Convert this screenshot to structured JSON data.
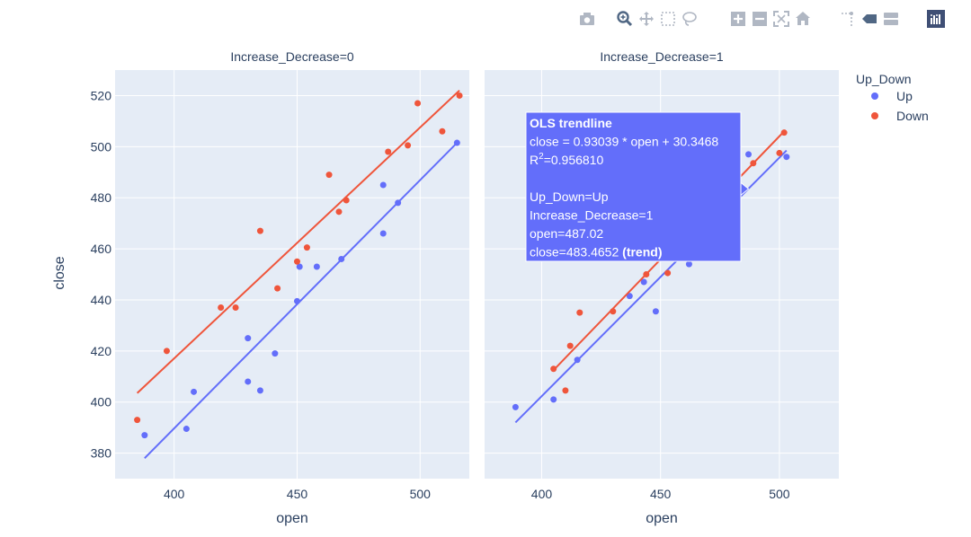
{
  "modebar": {
    "buttons": [
      "camera-icon",
      "zoom-icon",
      "pan-icon",
      "box-select-icon",
      "lasso-icon",
      "zoom-in-icon",
      "zoom-out-icon",
      "autoscale-icon",
      "reset-axes-icon",
      "spike-lines-icon",
      "hover-closest-icon",
      "hover-compare-icon",
      "plotly-logo-icon"
    ]
  },
  "chart_data": {
    "type": "scatter",
    "ylabel": "close",
    "legend": {
      "title": "Up_Down",
      "placement": "top-right",
      "entries": [
        "Up",
        "Down"
      ]
    },
    "colors": {
      "Up": "#636efa",
      "Down": "#ef553b",
      "hover_bg": "#636efa",
      "plot_bg": "#e5ecf6"
    },
    "ylim": [
      370,
      530
    ],
    "yticks": [
      380,
      400,
      420,
      440,
      460,
      480,
      500,
      520
    ],
    "grid": true,
    "panels": [
      {
        "title": "Increase_Decrease=0",
        "xlabel": "open",
        "xlim": [
          376,
          520
        ],
        "xticks": [
          400,
          450,
          500
        ],
        "series": [
          {
            "name": "Up",
            "points": [
              [
                388,
                387
              ],
              [
                405,
                389.5
              ],
              [
                408,
                404
              ],
              [
                430,
                425
              ],
              [
                430,
                408
              ],
              [
                435,
                404.5
              ],
              [
                441,
                419
              ],
              [
                450,
                439.5
              ],
              [
                451,
                453
              ],
              [
                458,
                453
              ],
              [
                468,
                456
              ],
              [
                485,
                485
              ],
              [
                485,
                466
              ],
              [
                491,
                478
              ],
              [
                515,
                501.5
              ]
            ],
            "trend": [
              [
                388,
                378
              ],
              [
                515,
                501.5
              ]
            ]
          },
          {
            "name": "Down",
            "points": [
              [
                385,
                393
              ],
              [
                397,
                420
              ],
              [
                419,
                437
              ],
              [
                425,
                437
              ],
              [
                435,
                467
              ],
              [
                442,
                444.5
              ],
              [
                450,
                455
              ],
              [
                454,
                460.5
              ],
              [
                463,
                489
              ],
              [
                467,
                474.5
              ],
              [
                470,
                479
              ],
              [
                487,
                498
              ],
              [
                495,
                500.5
              ],
              [
                499,
                517
              ],
              [
                509,
                506
              ],
              [
                516,
                520
              ]
            ],
            "trend": [
              [
                385,
                403.5
              ],
              [
                516,
                522
              ]
            ]
          }
        ]
      },
      {
        "title": "Increase_Decrease=1",
        "xlabel": "open",
        "xlim": [
          376,
          525
        ],
        "xticks": [
          400,
          450,
          500
        ],
        "series": [
          {
            "name": "Up",
            "points": [
              [
                389,
                398
              ],
              [
                405,
                401
              ],
              [
                415,
                416.5
              ],
              [
                437,
                441.5
              ],
              [
                443,
                447
              ],
              [
                448,
                435.5
              ],
              [
                462,
                454
              ],
              [
                487,
                497
              ],
              [
                503,
                496
              ]
            ],
            "trend": [
              [
                389,
                392
              ],
              [
                503,
                498.5
              ]
            ]
          },
          {
            "name": "Down",
            "points": [
              [
                405,
                413
              ],
              [
                410,
                404.5
              ],
              [
                412,
                422
              ],
              [
                416,
                435
              ],
              [
                430,
                435.5
              ],
              [
                444,
                450
              ],
              [
                453,
                450.5
              ],
              [
                489,
                493.5
              ],
              [
                500,
                497.5
              ],
              [
                502,
                505.5
              ]
            ],
            "trend": [
              [
                405,
                412.5
              ],
              [
                502,
                506
              ]
            ]
          }
        ]
      }
    ],
    "hover": {
      "panel": 1,
      "anchor": [
        487.02,
        483.4652
      ],
      "title": "OLS trendline",
      "equation": "close = 0.93039 * open + 30.3468",
      "r2_prefix": "R",
      "r2_sup": "2",
      "r2_value": "=0.956810",
      "lines": [
        "Up_Down=Up",
        "Increase_Decrease=1",
        "open=487.02"
      ],
      "last_prefix": "close=483.4652",
      "last_bold": " (trend)"
    }
  }
}
